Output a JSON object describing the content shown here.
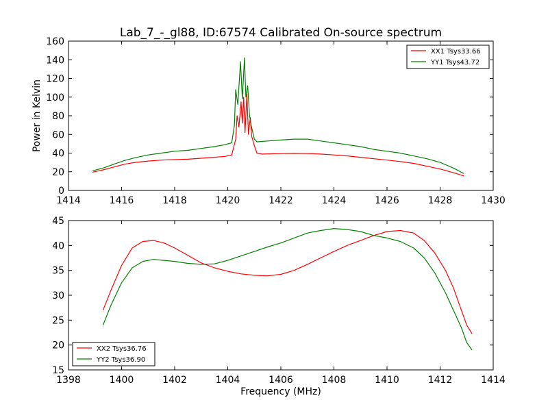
{
  "figure": {
    "title": "Lab_7_-_gl88, ID:67574 Calibrated On-source spectrum",
    "xlabel": "Frequency (MHz)"
  },
  "colors": {
    "xx": "#ff0000",
    "yy": "#008000"
  },
  "chart_data": [
    {
      "type": "line",
      "title": "Lab_7_-_gl88, ID:67574 Calibrated On-source spectrum",
      "xlabel": "",
      "ylabel": "Power in Kelvin",
      "xlim": [
        1414,
        1430
      ],
      "ylim": [
        0,
        160
      ],
      "xticks": [
        "1414",
        "1416",
        "1418",
        "1420",
        "1422",
        "1424",
        "1426",
        "1428",
        "1430"
      ],
      "yticks": [
        "0",
        "20",
        "40",
        "60",
        "80",
        "100",
        "120",
        "140",
        "160"
      ],
      "grid": false,
      "legend": "top-right",
      "series": [
        {
          "name": "XX1 Tsys33.66",
          "color": "#ff0000",
          "points": [
            [
              1414.9,
              19.5
            ],
            [
              1415.3,
              22
            ],
            [
              1415.7,
              25
            ],
            [
              1416.1,
              28
            ],
            [
              1416.5,
              30
            ],
            [
              1417.0,
              31.5
            ],
            [
              1417.5,
              32.5
            ],
            [
              1418.0,
              33
            ],
            [
              1418.5,
              33.5
            ],
            [
              1419.0,
              34.5
            ],
            [
              1419.5,
              35.5
            ],
            [
              1419.9,
              36.5
            ],
            [
              1420.15,
              38
            ],
            [
              1420.3,
              55
            ],
            [
              1420.35,
              80
            ],
            [
              1420.42,
              68
            ],
            [
              1420.5,
              95
            ],
            [
              1420.55,
              72
            ],
            [
              1420.6,
              100
            ],
            [
              1420.65,
              62
            ],
            [
              1420.72,
              103
            ],
            [
              1420.78,
              60
            ],
            [
              1420.85,
              78
            ],
            [
              1420.9,
              58
            ],
            [
              1421.0,
              48
            ],
            [
              1421.1,
              40
            ],
            [
              1421.3,
              39
            ],
            [
              1422.0,
              39.5
            ],
            [
              1422.5,
              39.7
            ],
            [
              1423.0,
              39.5
            ],
            [
              1423.5,
              39
            ],
            [
              1424.0,
              38
            ],
            [
              1424.5,
              37
            ],
            [
              1425.0,
              35.5
            ],
            [
              1425.5,
              34
            ],
            [
              1426.0,
              32.5
            ],
            [
              1426.5,
              31
            ],
            [
              1427.0,
              29
            ],
            [
              1427.5,
              26
            ],
            [
              1428.0,
              23
            ],
            [
              1428.5,
              19
            ],
            [
              1428.9,
              15.5
            ]
          ]
        },
        {
          "name": "YY1 Tsys43.72",
          "color": "#008000",
          "points": [
            [
              1414.9,
              21
            ],
            [
              1415.3,
              24
            ],
            [
              1415.7,
              28
            ],
            [
              1416.1,
              32
            ],
            [
              1416.5,
              35
            ],
            [
              1417.0,
              38
            ],
            [
              1417.5,
              40
            ],
            [
              1418.0,
              42
            ],
            [
              1418.5,
              43
            ],
            [
              1419.0,
              45
            ],
            [
              1419.5,
              47
            ],
            [
              1419.9,
              49
            ],
            [
              1420.15,
              51
            ],
            [
              1420.25,
              70
            ],
            [
              1420.3,
              108
            ],
            [
              1420.38,
              92
            ],
            [
              1420.48,
              138
            ],
            [
              1420.55,
              98
            ],
            [
              1420.63,
              142
            ],
            [
              1420.68,
              100
            ],
            [
              1420.75,
              112
            ],
            [
              1420.82,
              80
            ],
            [
              1420.88,
              70
            ],
            [
              1421.0,
              55
            ],
            [
              1421.1,
              52
            ],
            [
              1421.5,
              53
            ],
            [
              1422.0,
              54
            ],
            [
              1422.5,
              55
            ],
            [
              1423.0,
              55
            ],
            [
              1423.5,
              53
            ],
            [
              1424.0,
              51
            ],
            [
              1424.5,
              49
            ],
            [
              1425.0,
              47
            ],
            [
              1425.5,
              44
            ],
            [
              1426.0,
              42
            ],
            [
              1426.5,
              40
            ],
            [
              1427.0,
              37
            ],
            [
              1427.5,
              34
            ],
            [
              1428.0,
              30
            ],
            [
              1428.5,
              24
            ],
            [
              1428.9,
              18
            ]
          ]
        }
      ]
    },
    {
      "type": "line",
      "title": "",
      "xlabel": "Frequency (MHz)",
      "ylabel": "",
      "xlim": [
        1398,
        1414
      ],
      "ylim": [
        15,
        45
      ],
      "xticks": [
        "1398",
        "1400",
        "1402",
        "1404",
        "1406",
        "1408",
        "1410",
        "1412",
        "1414"
      ],
      "yticks": [
        "15",
        "20",
        "25",
        "30",
        "35",
        "40",
        "45"
      ],
      "grid": false,
      "legend": "bottom-left",
      "series": [
        {
          "name": "XX2 Tsys36.76",
          "color": "#ff0000",
          "points": [
            [
              1399.3,
              27
            ],
            [
              1399.6,
              31
            ],
            [
              1400.0,
              36
            ],
            [
              1400.4,
              39.5
            ],
            [
              1400.8,
              40.8
            ],
            [
              1401.2,
              41
            ],
            [
              1401.6,
              40.5
            ],
            [
              1402.0,
              39.5
            ],
            [
              1402.5,
              38
            ],
            [
              1403.0,
              36.5
            ],
            [
              1403.5,
              35.5
            ],
            [
              1404.0,
              34.8
            ],
            [
              1404.5,
              34.3
            ],
            [
              1405.0,
              34
            ],
            [
              1405.5,
              33.9
            ],
            [
              1406.0,
              34.2
            ],
            [
              1406.5,
              35
            ],
            [
              1407.0,
              36.2
            ],
            [
              1407.5,
              37.5
            ],
            [
              1408.0,
              38.8
            ],
            [
              1408.5,
              40
            ],
            [
              1409.0,
              41
            ],
            [
              1409.5,
              42
            ],
            [
              1410.0,
              42.8
            ],
            [
              1410.5,
              43
            ],
            [
              1411.0,
              42.5
            ],
            [
              1411.4,
              41
            ],
            [
              1411.8,
              38.5
            ],
            [
              1412.2,
              35
            ],
            [
              1412.5,
              31.5
            ],
            [
              1412.8,
              27
            ],
            [
              1413.0,
              24
            ],
            [
              1413.2,
              22.3
            ]
          ]
        },
        {
          "name": "YY2 Tsys36.90",
          "color": "#008000",
          "points": [
            [
              1399.3,
              24
            ],
            [
              1399.6,
              28
            ],
            [
              1400.0,
              32.5
            ],
            [
              1400.4,
              35.5
            ],
            [
              1400.8,
              36.8
            ],
            [
              1401.2,
              37.2
            ],
            [
              1401.6,
              37
            ],
            [
              1402.0,
              36.8
            ],
            [
              1402.5,
              36.4
            ],
            [
              1403.0,
              36.2
            ],
            [
              1403.5,
              36.3
            ],
            [
              1404.0,
              37
            ],
            [
              1404.5,
              37.9
            ],
            [
              1405.0,
              38.8
            ],
            [
              1405.5,
              39.7
            ],
            [
              1406.0,
              40.5
            ],
            [
              1406.5,
              41.5
            ],
            [
              1407.0,
              42.5
            ],
            [
              1407.5,
              43
            ],
            [
              1408.0,
              43.4
            ],
            [
              1408.5,
              43.2
            ],
            [
              1409.0,
              42.8
            ],
            [
              1409.5,
              42
            ],
            [
              1410.0,
              41.5
            ],
            [
              1410.5,
              40.8
            ],
            [
              1411.0,
              39.5
            ],
            [
              1411.4,
              37.5
            ],
            [
              1411.8,
              34.5
            ],
            [
              1412.2,
              30.5
            ],
            [
              1412.5,
              27
            ],
            [
              1412.8,
              23.5
            ],
            [
              1413.0,
              20.5
            ],
            [
              1413.2,
              19
            ]
          ]
        }
      ]
    }
  ]
}
